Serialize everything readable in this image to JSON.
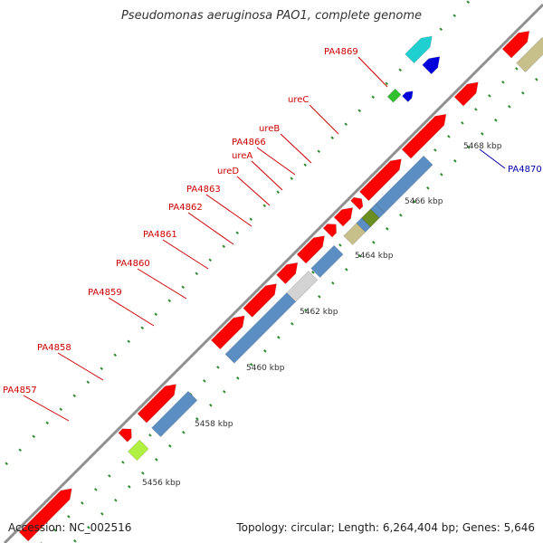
{
  "title": "Pseudomonas aeruginosa PAO1, complete genome",
  "accession": "Accession: NC_002516",
  "summary": "Topology: circular; Length: 6,264,404 bp; Genes: 5,646",
  "colors": {
    "red_label": "#cc0000",
    "blue_label": "#0000aa",
    "gene_red": "#ff0000",
    "gene_steel": "#5b8fc4",
    "gene_khaki": "#c8c08a",
    "gene_olive": "#6b8e23",
    "gene_gray": "#d3d3d3",
    "gene_lime": "#b0f040",
    "gene_blue": "#0000dd",
    "gene_cyan": "#20d0d0",
    "gene_green": "#30c030",
    "axis": "#888888",
    "tick": "#2e8b2e"
  },
  "scale_labels": [
    "5456 kbp",
    "5458 kbp",
    "5460 kbp",
    "5462 kbp",
    "5464 kbp",
    "5466 kbp",
    "5468 kbp"
  ],
  "gene_labels": [
    {
      "id": "pa4857",
      "text": "PA4857",
      "color": "red"
    },
    {
      "id": "pa4858",
      "text": "PA4858",
      "color": "red"
    },
    {
      "id": "pa4859",
      "text": "PA4859",
      "color": "red"
    },
    {
      "id": "pa4860",
      "text": "PA4860",
      "color": "red"
    },
    {
      "id": "pa4861",
      "text": "PA4861",
      "color": "red"
    },
    {
      "id": "pa4862",
      "text": "PA4862",
      "color": "red"
    },
    {
      "id": "pa4863",
      "text": "PA4863",
      "color": "red"
    },
    {
      "id": "ured",
      "text": "ureD",
      "color": "red"
    },
    {
      "id": "urea",
      "text": "ureA",
      "color": "red"
    },
    {
      "id": "pa4866",
      "text": "PA4866",
      "color": "red"
    },
    {
      "id": "ureb",
      "text": "ureB",
      "color": "red"
    },
    {
      "id": "urec",
      "text": "ureC",
      "color": "red"
    },
    {
      "id": "pa4869",
      "text": "PA4869",
      "color": "red"
    },
    {
      "id": "pa4870",
      "text": "PA4870",
      "color": "blue"
    }
  ]
}
